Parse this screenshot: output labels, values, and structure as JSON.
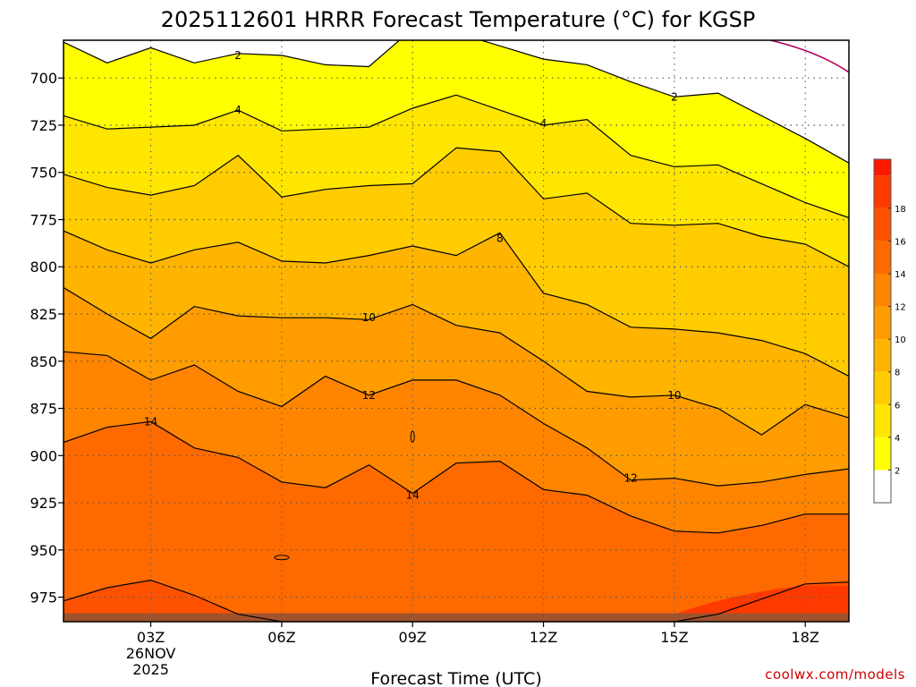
{
  "chart_data": {
    "type": "heatmap",
    "title": "2025112601 HRRR Forecast Temperature (°C) for KGSP",
    "xlabel": "Forecast Time (UTC)",
    "ylabel": "",
    "credit": "coolwx.com/models",
    "x_range_hours": [
      1,
      19
    ],
    "y_range_hpa": [
      680,
      988
    ],
    "x_ticks": [
      {
        "hour": 3,
        "label": "03Z",
        "sub1": "26NOV",
        "sub2": "2025"
      },
      {
        "hour": 6,
        "label": "06Z",
        "sub1": "",
        "sub2": ""
      },
      {
        "hour": 9,
        "label": "09Z",
        "sub1": "",
        "sub2": ""
      },
      {
        "hour": 12,
        "label": "12Z",
        "sub1": "",
        "sub2": ""
      },
      {
        "hour": 15,
        "label": "15Z",
        "sub1": "",
        "sub2": ""
      },
      {
        "hour": 18,
        "label": "18Z",
        "sub1": "",
        "sub2": ""
      }
    ],
    "y_ticks": [
      700,
      725,
      750,
      775,
      800,
      825,
      850,
      875,
      900,
      925,
      950,
      975
    ],
    "y_tick_labels": [
      "700",
      "725",
      "750",
      "775",
      "800",
      "825",
      "850",
      "875",
      "900",
      "925",
      "950",
      "975"
    ],
    "hours": [
      1,
      2,
      3,
      4,
      5,
      6,
      7,
      8,
      9,
      10,
      11,
      12,
      13,
      14,
      15,
      16,
      17,
      18,
      19
    ],
    "isotherms": [
      {
        "value": 2,
        "p": [
          681,
          692,
          684,
          692,
          687,
          688,
          693,
          694,
          674,
          676,
          683,
          690,
          693,
          702,
          710,
          708,
          720,
          732,
          745
        ]
      },
      {
        "value": 4,
        "p": [
          720,
          727,
          726,
          725,
          717,
          728,
          727,
          726,
          716,
          709,
          717,
          725,
          722,
          741,
          747,
          746,
          756,
          766,
          774
        ]
      },
      {
        "value": 6,
        "p": [
          751,
          758,
          762,
          757,
          741,
          763,
          759,
          757,
          756,
          737,
          739,
          764,
          761,
          777,
          778,
          777,
          784,
          788,
          800
        ]
      },
      {
        "value": 8,
        "p": [
          781,
          791,
          798,
          791,
          787,
          797,
          798,
          794,
          789,
          794,
          782,
          814,
          820,
          832,
          833,
          835,
          839,
          846,
          858
        ]
      },
      {
        "value": 10,
        "p": [
          811,
          825,
          838,
          821,
          826,
          827,
          827,
          828,
          820,
          831,
          835,
          850,
          866,
          869,
          868,
          875,
          889,
          873,
          880
        ]
      },
      {
        "value": 12,
        "p": [
          845,
          847,
          860,
          852,
          866,
          874,
          858,
          868,
          860,
          860,
          868,
          883,
          896,
          913,
          912,
          916,
          914,
          910,
          907
        ]
      },
      {
        "value": 14,
        "p": [
          893,
          885,
          882,
          896,
          901,
          914,
          917,
          905,
          920,
          904,
          903,
          918,
          921,
          932,
          940,
          941,
          937,
          931,
          931
        ]
      },
      {
        "value": 16,
        "p": [
          977,
          970,
          966,
          974,
          984,
          988,
          988,
          988,
          988,
          988,
          988,
          988,
          988,
          988,
          988,
          984,
          976,
          968,
          967
        ]
      }
    ],
    "colorbar": {
      "levels": [
        0,
        2,
        4,
        6,
        8,
        10,
        12,
        14,
        16,
        18,
        20
      ],
      "labels": [
        "2",
        "4",
        "6",
        "8",
        "10",
        "12",
        "14",
        "16",
        "18"
      ],
      "colors": [
        "#ffffff",
        "#ffff00",
        "#ffe600",
        "#ffcc00",
        "#ffb400",
        "#ff9c00",
        "#ff8400",
        "#ff6a00",
        "#ff5200",
        "#ff3a00",
        "#ff1800"
      ],
      "ground_color": "#a0522d",
      "zero_line_color": "#b00060"
    },
    "contour_labels": [
      {
        "text": "2",
        "hour": 5.0,
        "p": 688
      },
      {
        "text": "2",
        "hour": 15.0,
        "p": 710
      },
      {
        "text": "4",
        "hour": 5.0,
        "p": 717
      },
      {
        "text": "4",
        "hour": 12.0,
        "p": 724
      },
      {
        "text": "8",
        "hour": 11.0,
        "p": 785
      },
      {
        "text": "10",
        "hour": 8.0,
        "p": 827
      },
      {
        "text": "10",
        "hour": 15.0,
        "p": 868
      },
      {
        "text": "12",
        "hour": 8.0,
        "p": 868
      },
      {
        "text": "12",
        "hour": 14.0,
        "p": 912
      },
      {
        "text": "14",
        "hour": 3.0,
        "p": 882
      },
      {
        "text": "14",
        "hour": 9.0,
        "p": 921
      }
    ]
  }
}
